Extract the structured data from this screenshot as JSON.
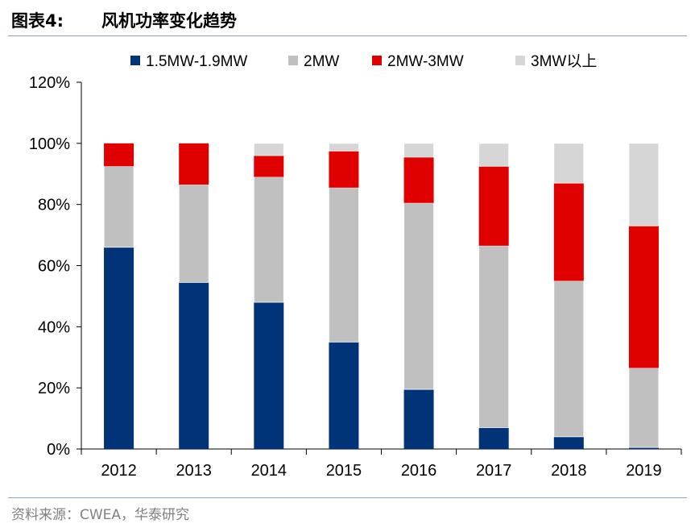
{
  "figure": {
    "label": "图表4:",
    "title": "风机功率变化趋势",
    "source": "资料来源：CWEA，华泰研究"
  },
  "chart_data": {
    "type": "bar",
    "stacked": true,
    "categories": [
      "2012",
      "2013",
      "2014",
      "2015",
      "2016",
      "2017",
      "2018",
      "2019"
    ],
    "series": [
      {
        "name": "1.5MW-1.9MW",
        "color": "#003378",
        "values": [
          66,
          54.5,
          48,
          35,
          19.5,
          7,
          4,
          0.5
        ]
      },
      {
        "name": "2MW",
        "color": "#c0c0c0",
        "values": [
          26.5,
          32,
          41,
          50.5,
          61,
          59.5,
          51,
          26
        ]
      },
      {
        "name": "2MW-3MW",
        "color": "#e00000",
        "values": [
          7.5,
          13.5,
          7,
          12,
          15,
          26,
          32,
          46.5
        ]
      },
      {
        "name": "3MW以上",
        "color": "#d6d6d6",
        "values": [
          0,
          0,
          4,
          2.5,
          4.5,
          7.5,
          13,
          27
        ]
      }
    ],
    "ylim": [
      0,
      120
    ],
    "yticks": [
      "0%",
      "20%",
      "40%",
      "60%",
      "80%",
      "100%",
      "120%"
    ],
    "legend_position": "top",
    "grid": false
  }
}
